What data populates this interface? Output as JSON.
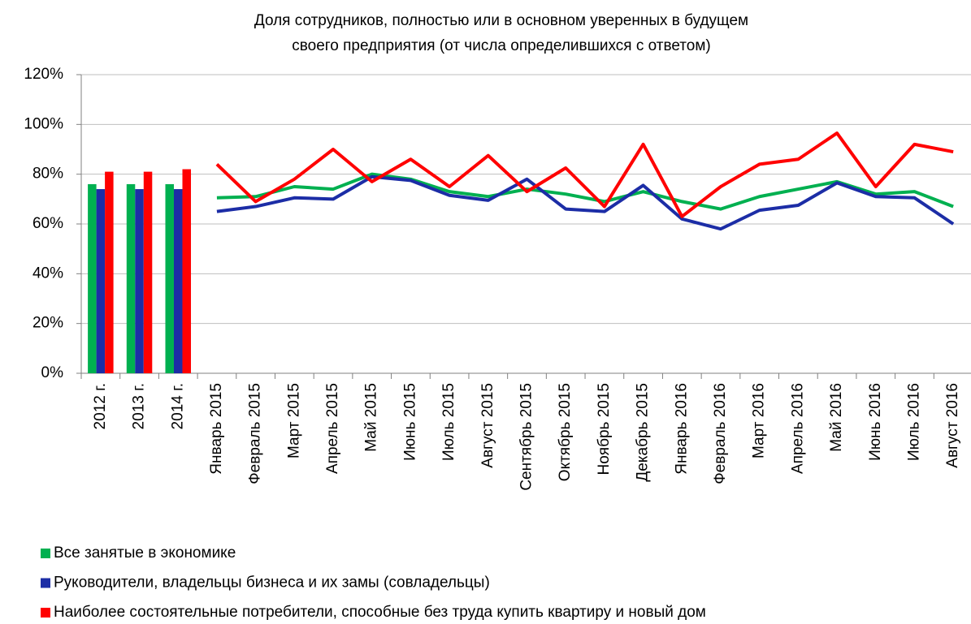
{
  "chart_data": {
    "type": "combo",
    "title": [
      "Доля сотрудников, полностью или в основном уверенных в будущем",
      "своего предприятия (от числа определившихся с ответом)"
    ],
    "bar_categories": [
      "2012 г.",
      "2013 г.",
      "2014 г."
    ],
    "line_categories": [
      "Январь 2015",
      "Февраль 2015",
      "Март 2015",
      "Апрель 2015",
      "Май 2015",
      "Июнь 2015",
      "Июль 2015",
      "Август 2015",
      "Сентябрь 2015",
      "Октябрь 2015",
      "Ноябрь 2015",
      "Декабрь 2015",
      "Январь 2016",
      "Февраль 2016",
      "Март 2016",
      "Апрель 2016",
      "Май 2016",
      "Июнь 2016",
      "Июль 2016",
      "Август 2016"
    ],
    "series": [
      {
        "name": "Все занятые в экономике",
        "color": "#00b050",
        "bar_values": [
          76,
          76,
          76
        ],
        "line_values": [
          70.5,
          71,
          75,
          74,
          80,
          78,
          73,
          71,
          74,
          72,
          69,
          73,
          69,
          66,
          71,
          74,
          77,
          72,
          73,
          67
        ]
      },
      {
        "name": "Руководители, владельцы бизнеса и их замы (совладельцы)",
        "color": "#1c2da6",
        "bar_values": [
          74,
          74,
          74
        ],
        "line_values": [
          65,
          67,
          70.5,
          70,
          79,
          77.5,
          71.5,
          69.5,
          78,
          66,
          65,
          75.5,
          62,
          58,
          65.5,
          67.5,
          76.5,
          71,
          70.5,
          60
        ]
      },
      {
        "name": "Наиболее состоятельные потребители, способные без труда купить квартиру и новый дом",
        "color": "#ff0000",
        "bar_values": [
          81,
          81,
          82
        ],
        "line_values": [
          84,
          69,
          78,
          90,
          77,
          86,
          75,
          87.5,
          73,
          82.5,
          67,
          92,
          63,
          75,
          84,
          86,
          96.5,
          75,
          92,
          89
        ]
      }
    ],
    "ylim": [
      0,
      120
    ],
    "yticks": [
      {
        "value": 0,
        "label": "0%"
      },
      {
        "value": 20,
        "label": "20%"
      },
      {
        "value": 40,
        "label": "40%"
      },
      {
        "value": 60,
        "label": "60%"
      },
      {
        "value": 80,
        "label": "80%"
      },
      {
        "value": 100,
        "label": "100%"
      },
      {
        "value": 120,
        "label": "120%"
      }
    ],
    "grid": true
  }
}
